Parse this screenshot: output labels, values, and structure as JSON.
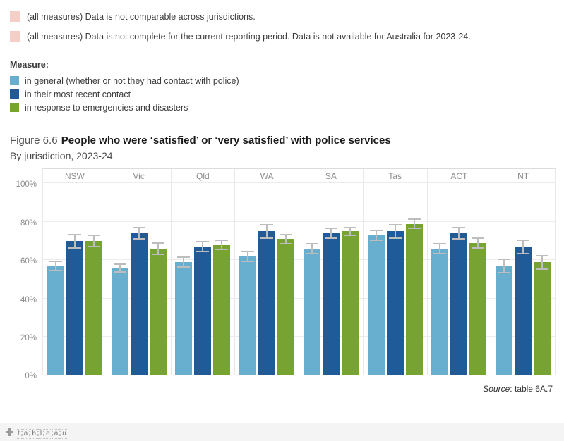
{
  "notes": [
    {
      "text": "(all measures) Data is not comparable across jurisdictions.",
      "color": "#f5cec7"
    },
    {
      "text": "(all measures) Data is not complete for the current reporting period. Data is not available for Australia for 2023-24.",
      "color": "#f5cec7"
    }
  ],
  "legend": {
    "title": "Measure:",
    "items": [
      {
        "label": "in general (whether or not they had contact with police)",
        "color": "#68aece"
      },
      {
        "label": "in their most recent contact",
        "color": "#1f5b99"
      },
      {
        "label": "in response to emergencies and disasters",
        "color": "#77a333"
      }
    ]
  },
  "title": {
    "figure": "Figure 6.6",
    "main": "People who were ‘satisfied’ or ‘very satisfied’ with police services",
    "subtitle": "By jurisdiction, 2023-24"
  },
  "chart_data": {
    "type": "bar",
    "title": "People who were ‘satisfied’ or ‘very satisfied’ with police services, by jurisdiction, 2023-24",
    "categories": [
      "NSW",
      "Vic",
      "Qld",
      "WA",
      "SA",
      "Tas",
      "ACT",
      "NT"
    ],
    "series": [
      {
        "name": "in general (whether or not they had contact with police)",
        "color": "#68aece",
        "values": [
          57,
          56,
          59,
          62,
          66,
          73,
          66,
          57
        ],
        "errors": [
          2.5,
          2,
          2.5,
          2.5,
          2.5,
          2.5,
          2.5,
          3.5
        ]
      },
      {
        "name": "in their most recent contact",
        "color": "#1f5b99",
        "values": [
          70,
          74,
          67,
          75,
          74,
          75,
          74,
          67
        ],
        "errors": [
          3.5,
          3,
          2.5,
          3.5,
          2.5,
          3.5,
          3,
          3.5
        ]
      },
      {
        "name": "in response to emergencies and disasters",
        "color": "#77a333",
        "values": [
          70,
          66,
          68,
          71,
          75,
          79,
          69,
          59
        ],
        "errors": [
          3,
          3,
          2.5,
          2.5,
          2,
          2.5,
          2.5,
          3.5
        ]
      }
    ],
    "xlabel": "",
    "ylabel": "",
    "ylim": [
      0,
      100
    ],
    "yticks": [
      0,
      20,
      40,
      60,
      80,
      100
    ],
    "ytick_labels": [
      "0%",
      "20%",
      "40%",
      "60%",
      "80%",
      "100%"
    ],
    "grid": true,
    "error_bars": true,
    "legend_position": "top-left"
  },
  "source": {
    "word": "Source",
    "rest": ": table 6A.7"
  },
  "footer": {
    "logo": "tableau"
  }
}
